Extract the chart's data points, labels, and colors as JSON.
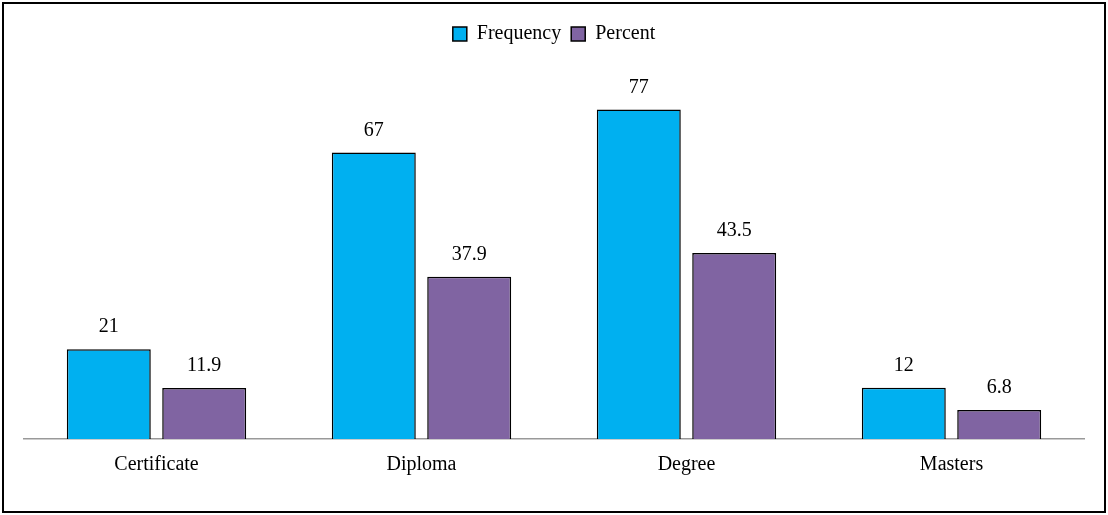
{
  "chart_data": {
    "type": "bar",
    "categories": [
      "Certificate",
      "Diploma",
      "Degree",
      "Masters"
    ],
    "series": [
      {
        "name": "Frequency",
        "color": "#00b0f0",
        "values": [
          21,
          67,
          77,
          12
        ]
      },
      {
        "name": "Percent",
        "color": "#8064a2",
        "values": [
          11.9,
          37.9,
          43.5,
          6.8
        ]
      }
    ],
    "data_labels": true,
    "legend": "top"
  }
}
